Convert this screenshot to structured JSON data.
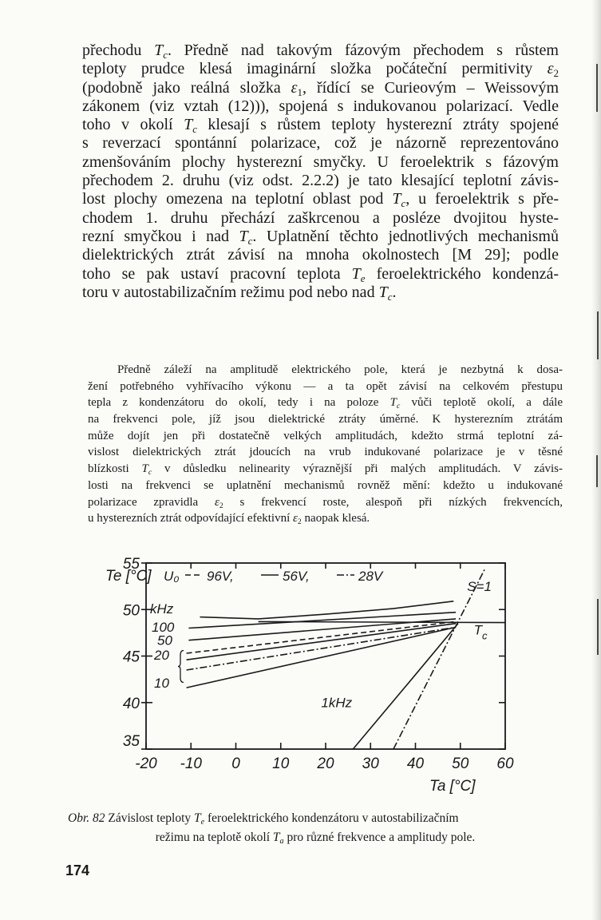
{
  "page_number": "174",
  "main_text": [
    "přechodu Tc. Předně nad takovým fázovým přechodem s růstem",
    "teploty prudce klesá imaginární složka počáteční permitivity ε2",
    "(podobně jako reálná složka ε1, řídící se Curieovým – Weissovým",
    "zákonem (viz vztah (12))), spojená s indukovanou polarizací. Vedle",
    "toho v okolí Tc klesají s růstem teploty hysterezní ztráty spojené",
    "s reverzací spontánní polarizace, což je názorně reprezentováno",
    "zmenšováním plochy hysterezní smyčky. U feroelektrik s fázovým",
    "přechodem 2. druhu (viz odst. 2.2.2) je tato klesající teplotní závis-",
    "lost plochy omezena na teplotní oblast pod Tc, u feroelektrik s pře-",
    "chodem 1. druhu přechází zaškrcenou a posléze dvojitou hyste-",
    "rezní smyčkou i nad Tc. Uplatnění těchto jednotlivých mechanismů",
    "dielektrických ztrát závisí na mnoha okolnostech [M 29]; podle",
    "toho se pak ustaví pracovní teplota Te feroelektrického kondenzá-",
    "toru v autostabilizačním režimu pod nebo nad Tc."
  ],
  "note_text": [
    "Předně záleží na amplitudě elektrického pole, která je nezbytná k dosa-",
    "žení potřebného vyhřívacího výkonu — a ta opět závisí na celkovém přestupu",
    "tepla z kondenzátoru do okolí, tedy i na poloze Tc vůči teplotě okolí, a dále",
    "na frekvenci pole, jíž jsou dielektrické ztráty úměrné. K hysterezním ztrátám",
    "může dojít jen při dostatečně velkých amplitudách, kdežto strmá teplotní zá-",
    "vislost dielektrických ztrát jdoucích na vrub indukované polarizace je v těsné",
    "blízkosti Tc v důsledku nelinearity výraznější při malých amplitudách. V závis-",
    "losti na frekvenci se uplatnění mechanismů rovněž mění: kdežto u indukované",
    "polarizace zpravidla ε2 s frekvencí roste, alespoň při nízkých frekvencích,",
    "u hysterezních ztrát odpovídající efektivní ε2 naopak klesá."
  ],
  "caption": {
    "label": "Obr. 82",
    "line1": "Závislost teploty Te feroelektrického kondenzátoru v autostabilizačním",
    "line2": "režimu na teplotě okolí Ta pro různé frekvence a amplitudy pole."
  },
  "chart_data": {
    "type": "line",
    "title": "",
    "xlabel": "Ta [°C]",
    "ylabel": "Te [°C]",
    "xlim": [
      -20,
      60
    ],
    "ylim": [
      35,
      55
    ],
    "x_ticks": [
      "-20",
      "-10",
      "0",
      "10",
      "20",
      "30",
      "40",
      "50",
      "60"
    ],
    "y_ticks": [
      "55",
      "50",
      "45",
      "40",
      "35"
    ],
    "grid": false,
    "legend": {
      "prefix": "U₀",
      "entries": [
        {
          "style": "dashed",
          "label": "96V,"
        },
        {
          "style": "solid",
          "label": "56V,"
        },
        {
          "style": "dashdot",
          "label": "28V"
        }
      ]
    },
    "freq_unit_label": "kHz",
    "annotations": {
      "tc": "Tc",
      "s1": "S=1",
      "f1": "1kHz"
    },
    "series": [
      {
        "label": "",
        "style": "solid",
        "points": [
          [
            -8,
            49.2
          ],
          [
            5,
            49.0
          ],
          [
            20,
            49.5
          ],
          [
            35,
            50.1
          ],
          [
            48.5,
            50.9
          ]
        ]
      },
      {
        "label": "100",
        "style": "solid",
        "points": [
          [
            -10.5,
            48.0
          ],
          [
            49,
            49.7
          ]
        ]
      },
      {
        "label": "50",
        "style": "solid",
        "points": [
          [
            -10.5,
            46.7
          ],
          [
            49,
            49.0
          ]
        ]
      },
      {
        "label": "20",
        "style": "dashed",
        "points": [
          [
            -11,
            45.3
          ],
          [
            49,
            48.7
          ]
        ]
      },
      {
        "label": "",
        "style": "solid",
        "points": [
          [
            -11,
            44.6
          ],
          [
            49,
            48.5
          ]
        ]
      },
      {
        "label": "",
        "style": "dashdot",
        "points": [
          [
            -11,
            43.5
          ],
          [
            49,
            48.1
          ]
        ]
      },
      {
        "label": "10",
        "style": "solid",
        "points": [
          [
            -11,
            41.6
          ],
          [
            49,
            48.1
          ]
        ]
      },
      {
        "label": "1kHz",
        "style": "solid",
        "points": [
          [
            26.1,
            35
          ],
          [
            40,
            43
          ],
          [
            49.5,
            48.5
          ]
        ]
      },
      {
        "label": "S=1",
        "style": "dashdot",
        "points": [
          [
            35.1,
            35
          ],
          [
            55.6,
            54.5
          ]
        ]
      },
      {
        "label": "Tc",
        "style": "solid",
        "points": [
          [
            5,
            48.7
          ],
          [
            60,
            48.6
          ]
        ]
      }
    ]
  }
}
